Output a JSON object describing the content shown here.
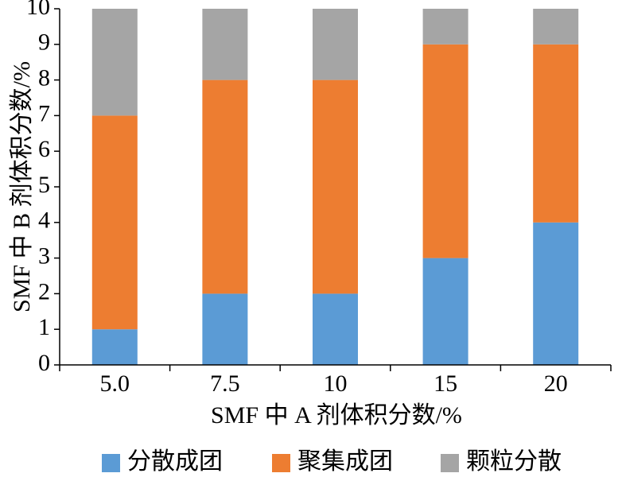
{
  "chart_data": {
    "type": "bar",
    "stacked": true,
    "categories": [
      "5.0",
      "7.5",
      "10",
      "15",
      "20"
    ],
    "series": [
      {
        "name": "分散成团",
        "values": [
          1,
          2,
          2,
          3,
          4
        ],
        "color": "#5B9BD5"
      },
      {
        "name": "聚集成团",
        "values": [
          6,
          6,
          6,
          6,
          5
        ],
        "color": "#ED7D31"
      },
      {
        "name": "颗粒分散",
        "values": [
          3,
          2,
          2,
          1,
          1
        ],
        "color": "#A5A5A5"
      }
    ],
    "xlabel": "SMF 中 A 剂体积分数/%",
    "ylabel": "SMF 中 B 剂体积分数/%",
    "ylim": [
      0,
      10
    ],
    "yticks": [
      "0",
      "1",
      "2",
      "3",
      "4",
      "5",
      "6",
      "7",
      "8",
      "9",
      "10"
    ],
    "grid": false,
    "legend_position": "bottom"
  }
}
